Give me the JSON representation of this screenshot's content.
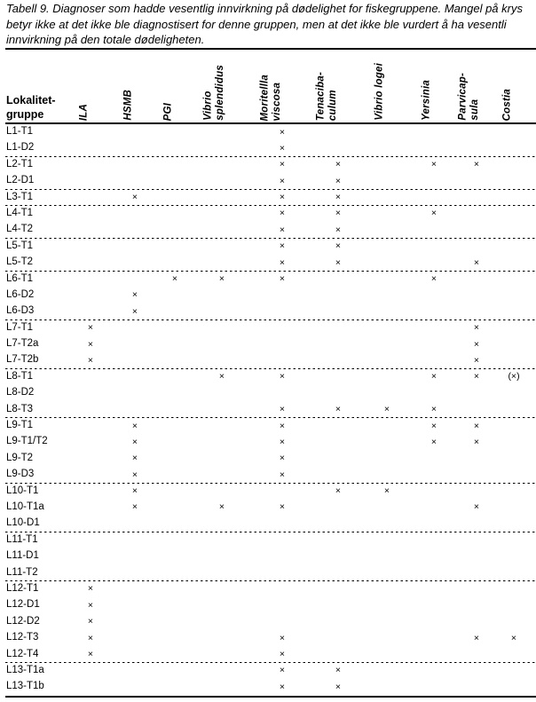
{
  "title": {
    "line1": "Tabell 9. Diagnoser som hadde vesentlig innvirkning på dødelighet for fiskegruppene. Mangel på krys",
    "line2": "betyr ikke at det ikke ble diagnostisert for denne gruppen, men at det ikke ble vurdert å ha vesentli",
    "line3": "innvirkning på den totale dødeligheten."
  },
  "table": {
    "row_header_label": "Lokalitet-\ngruppe",
    "columns": [
      {
        "id": "ila",
        "label": "ILA"
      },
      {
        "id": "hsmb",
        "label": "HSMB"
      },
      {
        "id": "pgi",
        "label": "PGI"
      },
      {
        "id": "vibrio-splendidus",
        "label": "Vibrio\nsplendidus"
      },
      {
        "id": "moritellla-viscosa",
        "label": "Moritellla\nviscosa"
      },
      {
        "id": "tenacibaculum",
        "label": "Tenaciba-\nculum"
      },
      {
        "id": "vibrio-logei",
        "label": "Vibrio logei"
      },
      {
        "id": "yersinia",
        "label": "Yersinia"
      },
      {
        "id": "parvicapsula",
        "label": "Parvicap-\nsula"
      },
      {
        "id": "costia",
        "label": "Costia"
      }
    ],
    "groups": [
      {
        "rows": [
          {
            "label": "L1-T1",
            "cells": [
              "",
              "",
              "",
              "",
              "×",
              "",
              "",
              "",
              "",
              ""
            ]
          },
          {
            "label": "L1-D2",
            "cells": [
              "",
              "",
              "",
              "",
              "×",
              "",
              "",
              "",
              "",
              ""
            ]
          }
        ]
      },
      {
        "rows": [
          {
            "label": "L2-T1",
            "cells": [
              "",
              "",
              "",
              "",
              "×",
              "×",
              "",
              "×",
              "×",
              ""
            ]
          },
          {
            "label": "L2-D1",
            "cells": [
              "",
              "",
              "",
              "",
              "×",
              "×",
              "",
              "",
              "",
              ""
            ]
          }
        ]
      },
      {
        "rows": [
          {
            "label": "L3-T1",
            "cells": [
              "",
              "×",
              "",
              "",
              "×",
              "×",
              "",
              "",
              "",
              ""
            ]
          }
        ]
      },
      {
        "rows": [
          {
            "label": "L4-T1",
            "cells": [
              "",
              "",
              "",
              "",
              "×",
              "×",
              "",
              "×",
              "",
              ""
            ]
          },
          {
            "label": "L4-T2",
            "cells": [
              "",
              "",
              "",
              "",
              "×",
              "×",
              "",
              "",
              "",
              ""
            ]
          }
        ]
      },
      {
        "rows": [
          {
            "label": "L5-T1",
            "cells": [
              "",
              "",
              "",
              "",
              "×",
              "×",
              "",
              "",
              "",
              ""
            ]
          },
          {
            "label": "L5-T2",
            "cells": [
              "",
              "",
              "",
              "",
              "×",
              "×",
              "",
              "",
              "×",
              ""
            ]
          }
        ]
      },
      {
        "rows": [
          {
            "label": "L6-T1",
            "cells": [
              "",
              "",
              "×",
              "×",
              "×",
              "",
              "",
              "×",
              "",
              ""
            ]
          },
          {
            "label": "L6-D2",
            "cells": [
              "",
              "×",
              "",
              "",
              "",
              "",
              "",
              "",
              "",
              ""
            ]
          },
          {
            "label": "L6-D3",
            "cells": [
              "",
              "×",
              "",
              "",
              "",
              "",
              "",
              "",
              "",
              ""
            ]
          }
        ]
      },
      {
        "rows": [
          {
            "label": "L7-T1",
            "cells": [
              "×",
              "",
              "",
              "",
              "",
              "",
              "",
              "",
              "×",
              ""
            ]
          },
          {
            "label": "L7-T2a",
            "cells": [
              "×",
              "",
              "",
              "",
              "",
              "",
              "",
              "",
              "×",
              ""
            ]
          },
          {
            "label": "L7-T2b",
            "cells": [
              "×",
              "",
              "",
              "",
              "",
              "",
              "",
              "",
              "×",
              ""
            ]
          }
        ]
      },
      {
        "rows": [
          {
            "label": "L8-T1",
            "cells": [
              "",
              "",
              "",
              "×",
              "×",
              "",
              "",
              "×",
              "×",
              "(×)"
            ]
          },
          {
            "label": "L8-D2",
            "cells": [
              "",
              "",
              "",
              "",
              "",
              "",
              "",
              "",
              "",
              ""
            ]
          },
          {
            "label": "L8-T3",
            "cells": [
              "",
              "",
              "",
              "",
              "×",
              "×",
              "×",
              "×",
              "",
              ""
            ]
          }
        ]
      },
      {
        "rows": [
          {
            "label": "L9-T1",
            "cells": [
              "",
              "×",
              "",
              "",
              "×",
              "",
              "",
              "×",
              "×",
              ""
            ]
          },
          {
            "label": "L9-T1/T2",
            "cells": [
              "",
              "×",
              "",
              "",
              "×",
              "",
              "",
              "×",
              "×",
              ""
            ]
          },
          {
            "label": "L9-T2",
            "cells": [
              "",
              "×",
              "",
              "",
              "×",
              "",
              "",
              "",
              "",
              ""
            ]
          },
          {
            "label": "L9-D3",
            "cells": [
              "",
              "×",
              "",
              "",
              "×",
              "",
              "",
              "",
              "",
              ""
            ]
          }
        ]
      },
      {
        "rows": [
          {
            "label": "L10-T1",
            "cells": [
              "",
              "×",
              "",
              "",
              "",
              "×",
              "×",
              "",
              "",
              ""
            ]
          },
          {
            "label": "L10-T1a",
            "cells": [
              "",
              "×",
              "",
              "×",
              "×",
              "",
              "",
              "",
              "×",
              ""
            ]
          },
          {
            "label": "L10-D1",
            "cells": [
              "",
              "",
              "",
              "",
              "",
              "",
              "",
              "",
              "",
              ""
            ]
          }
        ]
      },
      {
        "rows": [
          {
            "label": "L11-T1",
            "cells": [
              "",
              "",
              "",
              "",
              "",
              "",
              "",
              "",
              "",
              ""
            ]
          },
          {
            "label": "L11-D1",
            "cells": [
              "",
              "",
              "",
              "",
              "",
              "",
              "",
              "",
              "",
              ""
            ]
          },
          {
            "label": "L11-T2",
            "cells": [
              "",
              "",
              "",
              "",
              "",
              "",
              "",
              "",
              "",
              ""
            ]
          }
        ]
      },
      {
        "rows": [
          {
            "label": "L12-T1",
            "cells": [
              "×",
              "",
              "",
              "",
              "",
              "",
              "",
              "",
              "",
              ""
            ]
          },
          {
            "label": "L12-D1",
            "cells": [
              "×",
              "",
              "",
              "",
              "",
              "",
              "",
              "",
              "",
              ""
            ]
          },
          {
            "label": "L12-D2",
            "cells": [
              "×",
              "",
              "",
              "",
              "",
              "",
              "",
              "",
              "",
              ""
            ]
          },
          {
            "label": "L12-T3",
            "cells": [
              "×",
              "",
              "",
              "",
              "×",
              "",
              "",
              "",
              "×",
              "×"
            ]
          },
          {
            "label": "L12-T4",
            "cells": [
              "×",
              "",
              "",
              "",
              "×",
              "",
              "",
              "",
              "",
              ""
            ]
          }
        ]
      },
      {
        "rows": [
          {
            "label": "L13-T1a",
            "cells": [
              "",
              "",
              "",
              "",
              "×",
              "×",
              "",
              "",
              "",
              ""
            ]
          },
          {
            "label": "L13-T1b",
            "cells": [
              "",
              "",
              "",
              "",
              "×",
              "×",
              "",
              "",
              "",
              ""
            ]
          }
        ]
      }
    ]
  },
  "colors": {
    "text": "#000000",
    "background": "#ffffff",
    "rule": "#000000"
  }
}
